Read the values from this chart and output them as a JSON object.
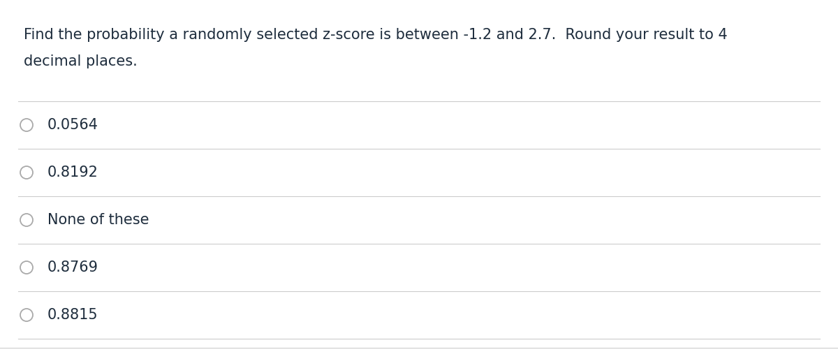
{
  "question_line1": "Find the probability a randomly selected z-score is between -1.2 and 2.7.  Round your result to 4",
  "question_line2": "decimal places.",
  "choices": [
    "0.0564",
    "0.8192",
    "None of these",
    "0.8769",
    "0.8815"
  ],
  "background_color": "#ffffff",
  "text_color": "#1e2d3d",
  "line_color": "#cccccc",
  "circle_edge_color": "#aaaaaa",
  "font_size_question": 15.0,
  "font_size_choices": 15.0,
  "fig_width": 12.0,
  "fig_height": 5.04
}
